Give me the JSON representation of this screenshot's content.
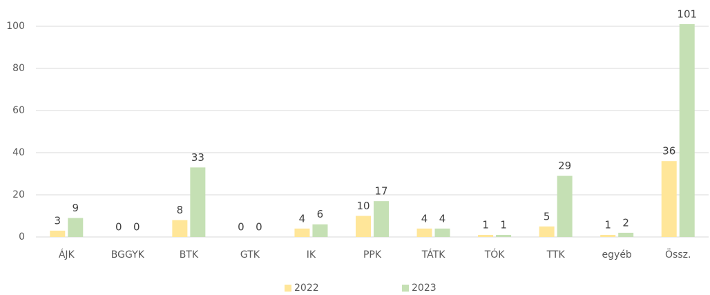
{
  "chart_data": {
    "type": "bar",
    "categories": [
      "ÁJK",
      "BGGYK",
      "BTK",
      "GTK",
      "IK",
      "PPK",
      "TÁTK",
      "TÓK",
      "TTK",
      "egyéb",
      "Össz."
    ],
    "series": [
      {
        "name": "2022",
        "color": "#ffe699",
        "values": [
          3,
          0,
          8,
          0,
          4,
          10,
          4,
          1,
          5,
          1,
          36
        ]
      },
      {
        "name": "2023",
        "color": "#c5e0b4",
        "values": [
          9,
          0,
          33,
          0,
          6,
          17,
          4,
          1,
          29,
          2,
          101
        ]
      }
    ],
    "ylim": [
      0,
      110
    ],
    "yticks": [
      0,
      20,
      40,
      60,
      80,
      100
    ],
    "grid": true,
    "legend": "bottom"
  }
}
